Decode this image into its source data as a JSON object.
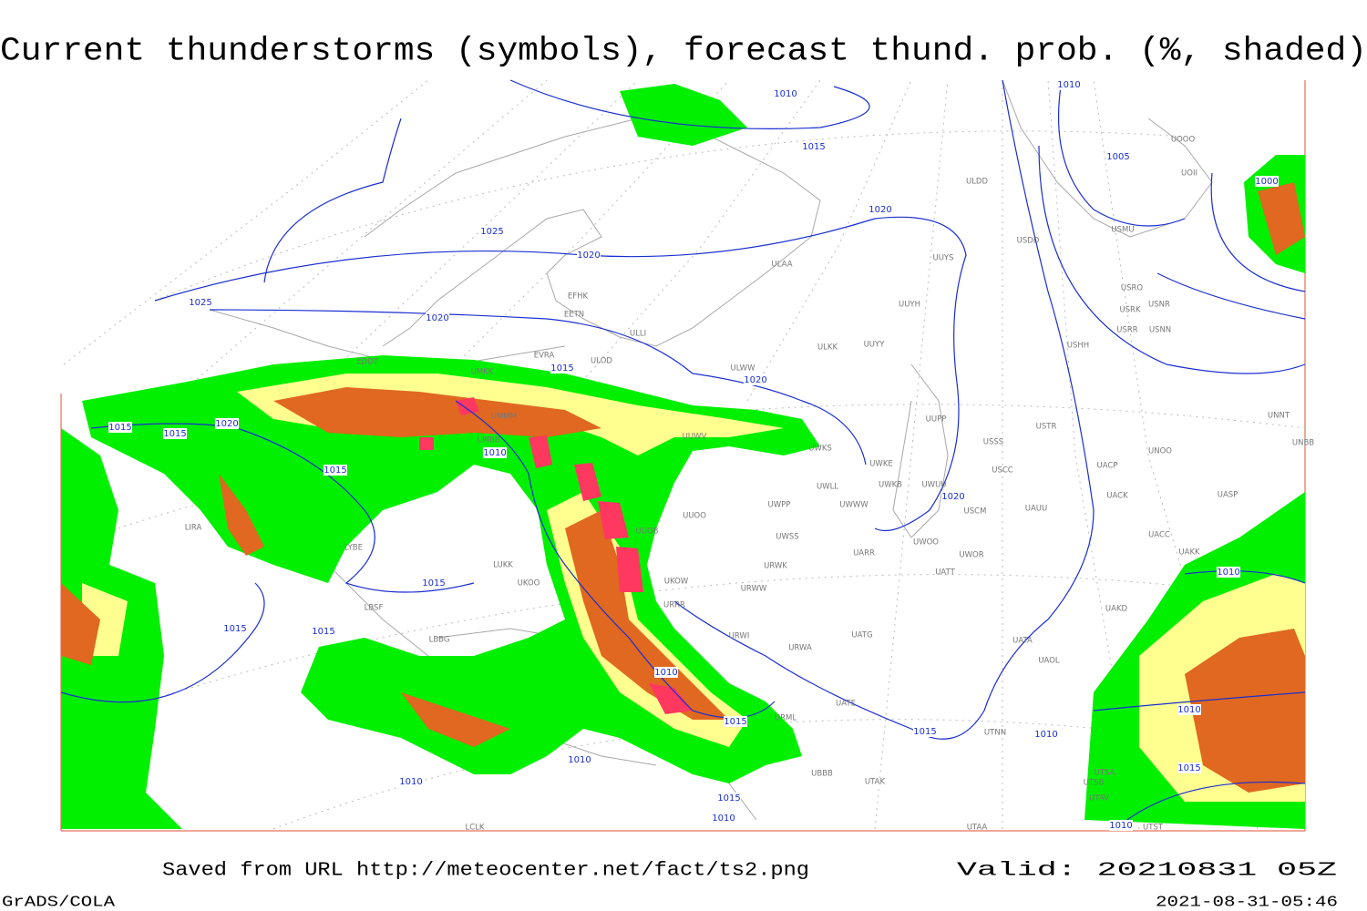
{
  "title": "Current thunderstorms (symbols), forecast thund. prob. (%, shaded)",
  "footer": {
    "saved": "Saved from URL http://meteocenter.net/fact/ts2.png",
    "valid": "Valid: 20210831 05Z",
    "software": "GrADS/COLA",
    "timestamp": "2021-08-31-05:46"
  },
  "isobar_labels": [
    "1010",
    "1015",
    "1010",
    "1005",
    "1000",
    "1025",
    "1020",
    "1020",
    "1025",
    "1020",
    "1015",
    "1020",
    "1015",
    "1015",
    "1020",
    "1010",
    "1015",
    "1020",
    "1015",
    "1015",
    "1015",
    "1010",
    "1010",
    "1015",
    "1015",
    "1010",
    "1010",
    "1015",
    "1010",
    "1010",
    "1015",
    "1010",
    "1010"
  ],
  "stations": [
    "ULDD",
    "USDD",
    "USMU",
    "UOII",
    "UOOO",
    "ULAA",
    "UUYS",
    "EFHK",
    "EETN",
    "USRO",
    "USNR",
    "USRK",
    "USRR",
    "USNN",
    "UUYH",
    "ULLI",
    "USHH",
    "ULKK",
    "UUYY",
    "EVRA",
    "ULOD",
    "EDDT",
    "ULWW",
    "UMKK",
    "UMMM",
    "UMBB",
    "UUWV",
    "UUPP",
    "USSS",
    "USTR",
    "UNNT",
    "UNBB",
    "UWKS",
    "UNOO",
    "UWKE",
    "USCC",
    "UACP",
    "UWLL",
    "UWKB",
    "UWUU",
    "UACK",
    "UASP",
    "UWPP",
    "UWWW",
    "USCM",
    "UAUU",
    "UUOB",
    "UUOO",
    "UWSS",
    "UACC",
    "UAKK",
    "UARR",
    "UWOR",
    "UWOO",
    "URWK",
    "UATT",
    "LUKK",
    "UKOO",
    "UKOW",
    "URWW",
    "LIRA",
    "LYBE",
    "LBSF",
    "UAKD",
    "URRR",
    "LBBG",
    "URWI",
    "UATG",
    "UATA",
    "URWA",
    "UAOL",
    "UATE",
    "UTNN",
    "URML",
    "UBBB",
    "UTAK",
    "UTSA",
    "UTSB",
    "UTAV",
    "UTAA",
    "UTST",
    "LCLK"
  ]
}
